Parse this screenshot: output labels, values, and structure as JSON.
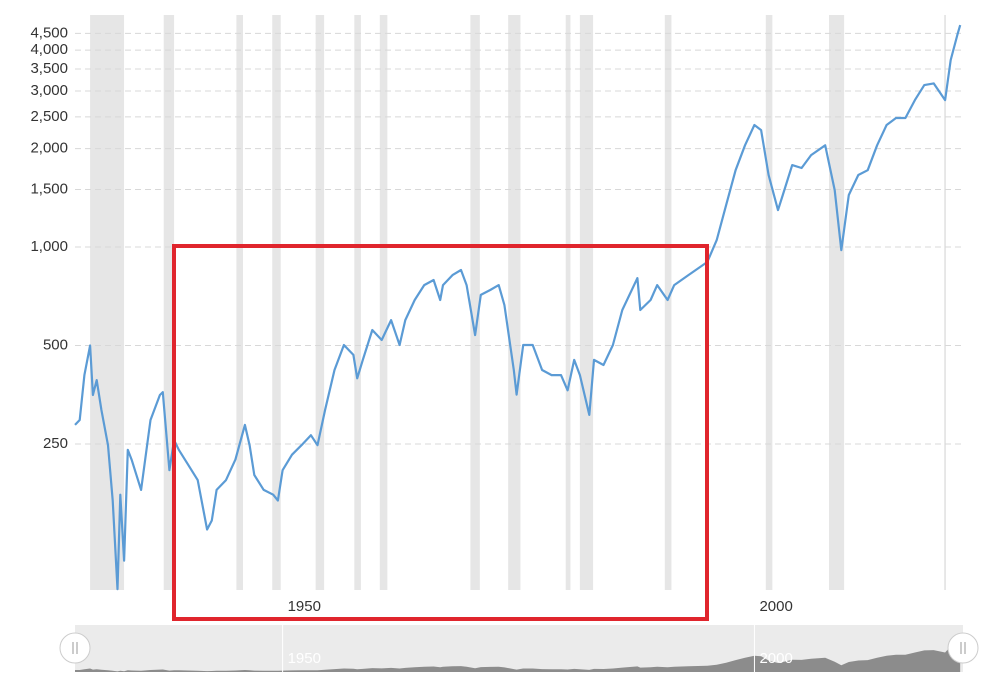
{
  "chart_data": {
    "type": "line",
    "log_y": true,
    "grid": true,
    "color": "#5b9bd5",
    "band_color": "#e6e6e6",
    "x": [
      1928.0,
      1928.5,
      1929.0,
      1929.6,
      1929.9,
      1930.3,
      1930.8,
      1931.5,
      1932.0,
      1932.5,
      1932.8,
      1933.2,
      1933.6,
      1934,
      1935,
      1936,
      1937,
      1937.3,
      1938,
      1938.5,
      1939,
      1940,
      1941,
      1942,
      1942.5,
      1943,
      1944,
      1945,
      1946,
      1946.5,
      1947,
      1948,
      1949,
      1949.5,
      1950,
      1951,
      1952,
      1953,
      1953.7,
      1954.5,
      1955.5,
      1956.5,
      1957.5,
      1957.9,
      1958.5,
      1959.5,
      1960.5,
      1961.5,
      1962.4,
      1963,
      1964,
      1965,
      1966,
      1966.7,
      1967,
      1968,
      1968.9,
      1969.5,
      1970.4,
      1971,
      1972,
      1972.9,
      1973.5,
      1974.5,
      1974.8,
      1975.5,
      1976.5,
      1977.5,
      1978.5,
      1979.5,
      1980.2,
      1980.9,
      1981.5,
      1982.5,
      1983,
      1984,
      1985,
      1986,
      1987.6,
      1987.9,
      1989,
      1989.7,
      1990.8,
      1991.5,
      1993,
      1995,
      1996,
      1997,
      1998,
      1999,
      2000,
      2000.7,
      2001.5,
      2002.5,
      2003,
      2004,
      2005,
      2006,
      2007.5,
      2008.5,
      2009.2,
      2010,
      2011,
      2012,
      2013,
      2014,
      2015,
      2016,
      2017,
      2018,
      2019,
      2020.2,
      2020.8,
      2021.5,
      2021.8
    ],
    "values": [
      286,
      296,
      406,
      500,
      353,
      392,
      318,
      248,
      168,
      90,
      175,
      110,
      240,
      224,
      181,
      296,
      353,
      360,
      208,
      257,
      240,
      216,
      194,
      137,
      146,
      181,
      194,
      224,
      286,
      248,
      201,
      181,
      175,
      168,
      208,
      232,
      248,
      266,
      248,
      318,
      421,
      502,
      468,
      397,
      452,
      558,
      520,
      598,
      502,
      598,
      689,
      765,
      793,
      689,
      765,
      821,
      851,
      765,
      538,
      714,
      739,
      765,
      665,
      421,
      354,
      502,
      502,
      421,
      406,
      406,
      365,
      452,
      406,
      307,
      452,
      436,
      502,
      642,
      804,
      642,
      689,
      765,
      689,
      765,
      821,
      900,
      1050,
      1343,
      1718,
      2046,
      2360,
      2277,
      1660,
      1297,
      1442,
      1780,
      1744,
      1910,
      2046,
      1493,
      979,
      1442,
      1660,
      1718,
      2046,
      2360,
      2480,
      2480,
      2812,
      3127,
      3163,
      2812,
      3730,
      4445,
      4770
    ],
    "recessions": [
      [
        1929.6,
        1933.2
      ],
      [
        1937.4,
        1938.5
      ],
      [
        1945.1,
        1945.8
      ],
      [
        1948.9,
        1949.8
      ],
      [
        1953.5,
        1954.4
      ],
      [
        1957.6,
        1958.3
      ],
      [
        1960.3,
        1961.1
      ],
      [
        1969.9,
        1970.9
      ],
      [
        1973.9,
        1975.2
      ],
      [
        1980.0,
        1980.5
      ],
      [
        1981.5,
        1982.9
      ],
      [
        1990.5,
        1991.2
      ],
      [
        2001.2,
        2001.9
      ],
      [
        2007.9,
        2009.5
      ],
      [
        2020.1,
        2020.3
      ]
    ],
    "xlim": [
      1928.0,
      2022.1
    ],
    "xticks": [
      1950,
      2000
    ],
    "ylim": [
      89.5,
      5120
    ],
    "yticks": [
      250,
      500,
      {
        "value": 1000,
        "label": "1,000"
      },
      {
        "value": 1500,
        "label": "1,500"
      },
      {
        "value": 2000,
        "label": "2,000"
      },
      {
        "value": 2500,
        "label": "2,500"
      },
      {
        "value": 3000,
        "label": "3,000"
      },
      {
        "value": 3500,
        "label": "3,500"
      },
      {
        "value": 4000,
        "label": "4,000"
      },
      {
        "value": 4500,
        "label": "4,500"
      }
    ]
  }
}
